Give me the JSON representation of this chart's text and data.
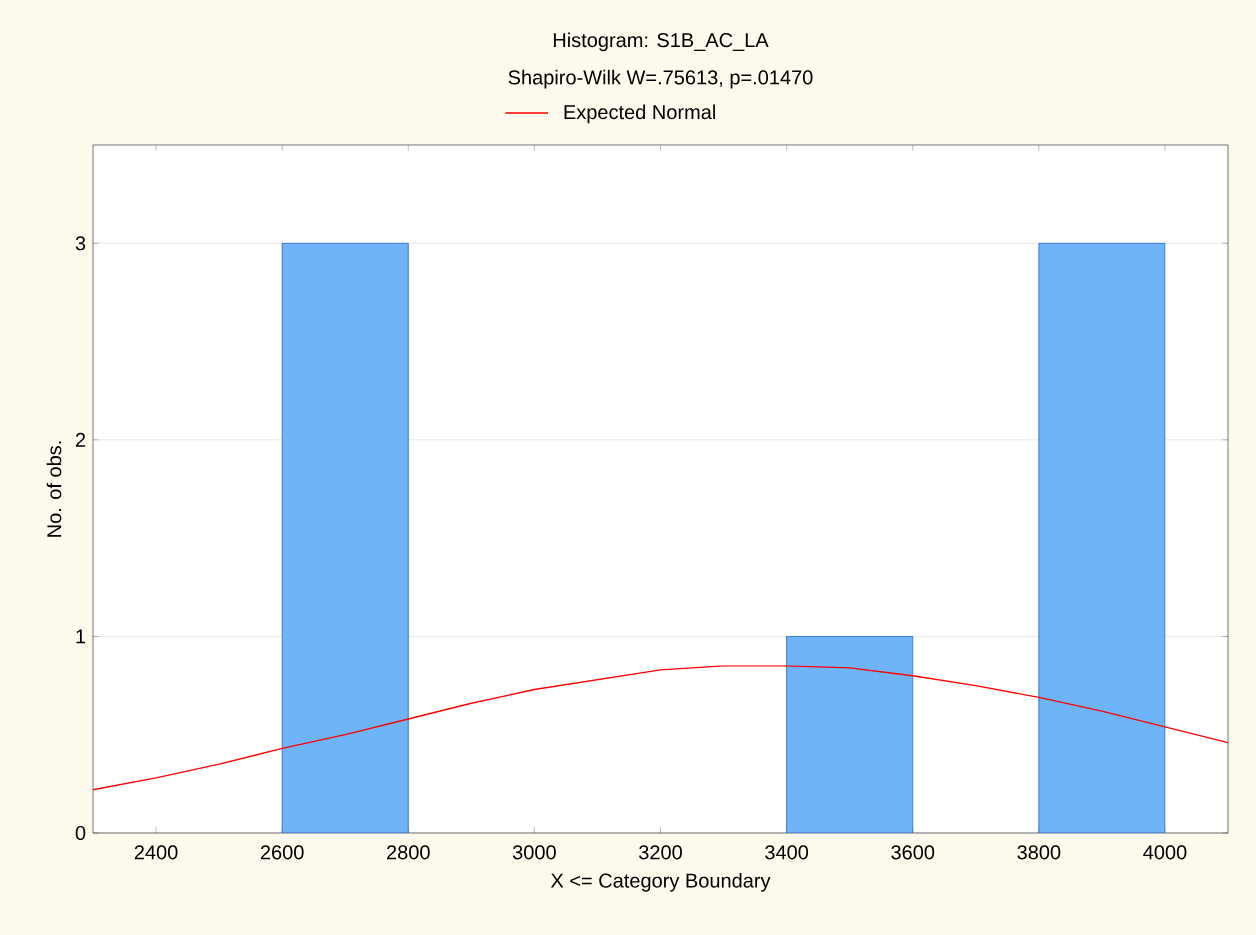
{
  "chart_data": {
    "type": "histogram",
    "title": "Histogram: S1B_AC_LA",
    "subtitle": "Shapiro-Wilk W=.75613, p=.01470",
    "xlabel": "X <= Category Boundary",
    "ylabel": "No. of obs.",
    "bins": [
      2600,
      2800,
      3000,
      3200,
      3400,
      3600,
      3800,
      4000
    ],
    "values": [
      3,
      0,
      0,
      0,
      1,
      0,
      3
    ],
    "color": "#6fb4f8",
    "series": [
      {
        "type": "line",
        "name": "Expected Normal",
        "color": "#ff0000",
        "x": [
          2300,
          2400,
          2500,
          2600,
          2700,
          2800,
          2900,
          3000,
          3100,
          3200,
          3300,
          3400,
          3500,
          3600,
          3700,
          3800,
          3900,
          4000,
          4100
        ],
        "values": [
          0.22,
          0.28,
          0.35,
          0.43,
          0.5,
          0.58,
          0.66,
          0.73,
          0.78,
          0.83,
          0.85,
          0.85,
          0.84,
          0.8,
          0.75,
          0.69,
          0.62,
          0.54,
          0.46
        ]
      }
    ],
    "xlim": [
      2300,
      4100
    ],
    "ylim": [
      0,
      3.5
    ],
    "xticks": [
      2400,
      2600,
      2800,
      3000,
      3200,
      3400,
      3600,
      3800,
      4000
    ],
    "yticks": [
      0,
      1,
      2,
      3
    ],
    "grid": "y",
    "legend": "top"
  }
}
